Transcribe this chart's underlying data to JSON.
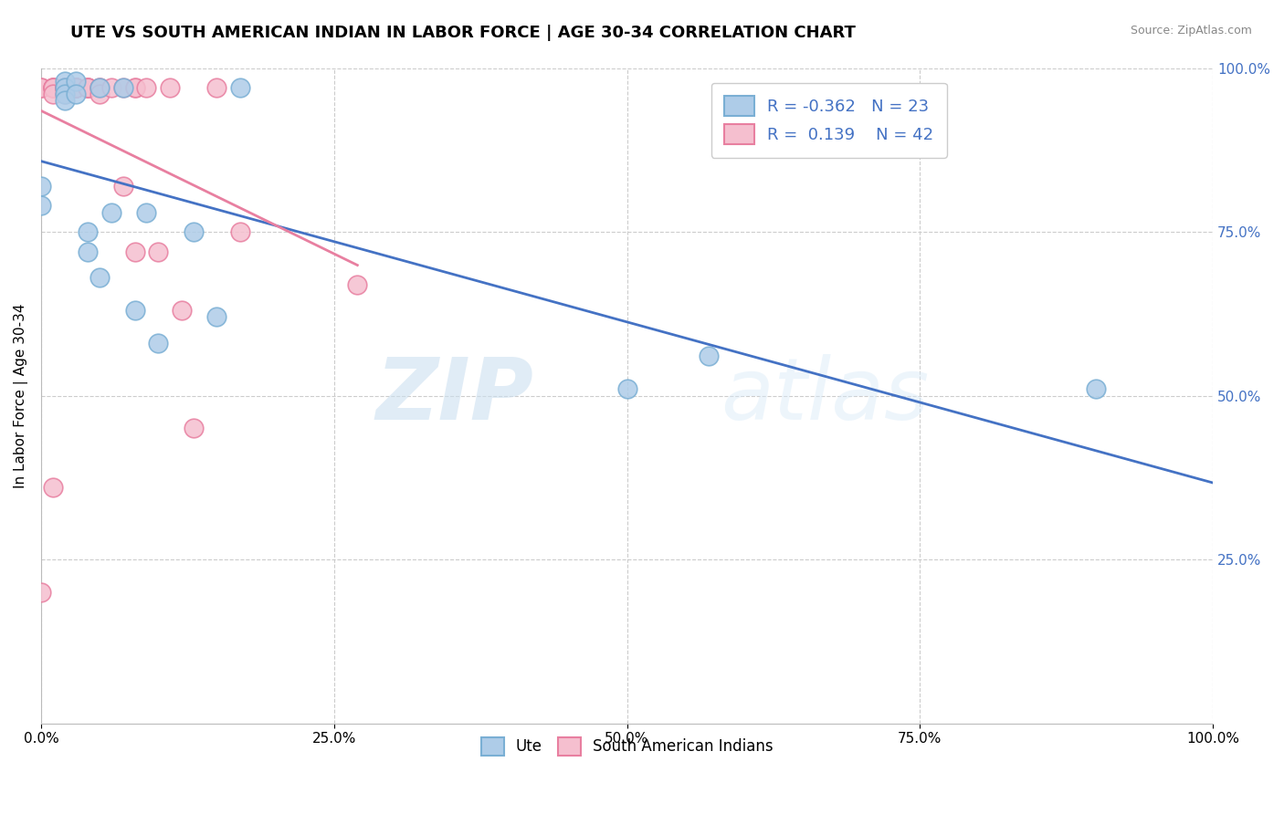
{
  "title": "UTE VS SOUTH AMERICAN INDIAN IN LABOR FORCE | AGE 30-34 CORRELATION CHART",
  "source": "Source: ZipAtlas.com",
  "ylabel": "In Labor Force | Age 30-34",
  "xlim": [
    0.0,
    1.0
  ],
  "ylim": [
    0.0,
    1.0
  ],
  "xticks": [
    0.0,
    0.25,
    0.5,
    0.75,
    1.0
  ],
  "yticks_left": [],
  "yticks_right": [
    0.25,
    0.5,
    0.75,
    1.0
  ],
  "xticklabels": [
    "0.0%",
    "25.0%",
    "50.0%",
    "75.0%",
    "100.0%"
  ],
  "yticklabels_right": [
    "25.0%",
    "50.0%",
    "75.0%",
    "100.0%"
  ],
  "grid_color": "#cccccc",
  "ute_color": "#aecce8",
  "ute_edge_color": "#7aafd4",
  "sa_color": "#f5bfcf",
  "sa_edge_color": "#e87fa0",
  "watermark_zip": "ZIP",
  "watermark_atlas": "atlas",
  "legend_r_ute": "-0.362",
  "legend_n_ute": "23",
  "legend_r_sa": "0.139",
  "legend_n_sa": "42",
  "ute_line_color": "#4472c4",
  "sa_line_color": "#e87fa0",
  "ute_points_x": [
    0.0,
    0.0,
    0.02,
    0.02,
    0.02,
    0.02,
    0.03,
    0.03,
    0.04,
    0.04,
    0.05,
    0.05,
    0.06,
    0.07,
    0.08,
    0.09,
    0.1,
    0.13,
    0.15,
    0.17,
    0.5,
    0.57,
    0.9
  ],
  "ute_points_y": [
    0.82,
    0.79,
    0.98,
    0.97,
    0.96,
    0.95,
    0.98,
    0.96,
    0.75,
    0.72,
    0.68,
    0.97,
    0.78,
    0.97,
    0.63,
    0.78,
    0.58,
    0.75,
    0.62,
    0.97,
    0.51,
    0.56,
    0.51
  ],
  "sa_points_x": [
    0.0,
    0.0,
    0.0,
    0.01,
    0.01,
    0.01,
    0.01,
    0.01,
    0.01,
    0.02,
    0.02,
    0.02,
    0.02,
    0.02,
    0.02,
    0.03,
    0.03,
    0.03,
    0.03,
    0.03,
    0.03,
    0.04,
    0.04,
    0.04,
    0.04,
    0.05,
    0.05,
    0.05,
    0.06,
    0.07,
    0.07,
    0.08,
    0.08,
    0.08,
    0.09,
    0.1,
    0.11,
    0.12,
    0.13,
    0.15,
    0.17,
    0.27
  ],
  "sa_points_y": [
    0.97,
    0.97,
    0.2,
    0.97,
    0.97,
    0.97,
    0.97,
    0.96,
    0.36,
    0.97,
    0.97,
    0.97,
    0.97,
    0.96,
    0.97,
    0.97,
    0.97,
    0.97,
    0.97,
    0.97,
    0.97,
    0.97,
    0.97,
    0.97,
    0.97,
    0.97,
    0.97,
    0.96,
    0.97,
    0.82,
    0.97,
    0.97,
    0.72,
    0.97,
    0.97,
    0.72,
    0.97,
    0.63,
    0.45,
    0.97,
    0.75,
    0.67
  ]
}
